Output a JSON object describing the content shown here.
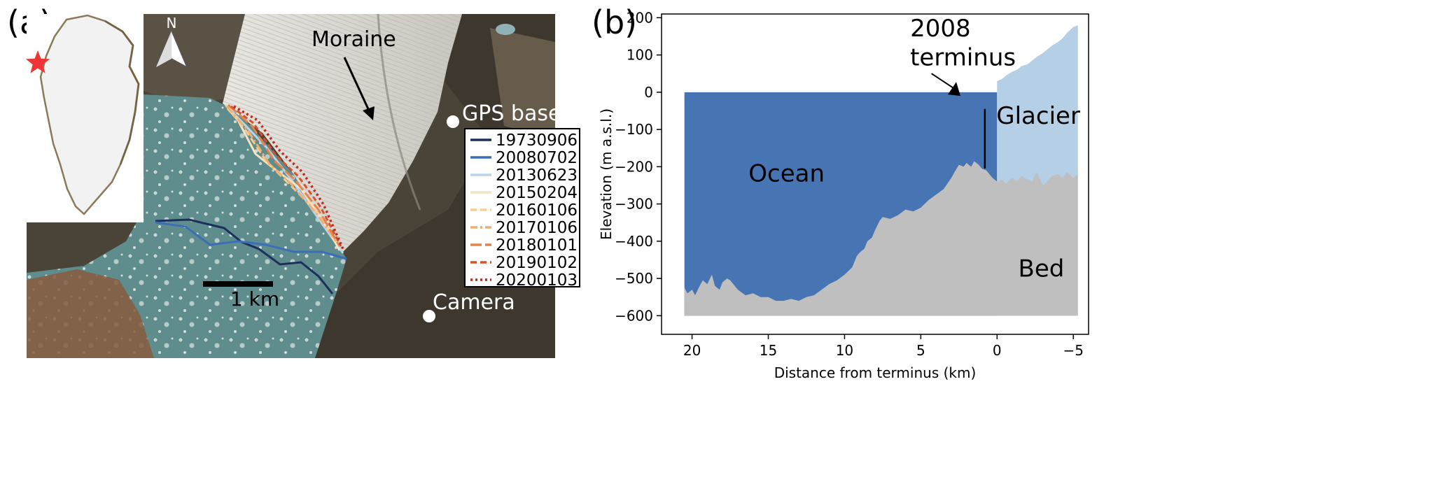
{
  "panel_a": {
    "label": "(a)",
    "north_label": "N",
    "annotations": {
      "moraine": "Moraine",
      "gps_base": "GPS base",
      "camera": "Camera"
    },
    "scale_bar": "1 km",
    "locator_marker": "red-star",
    "legend": [
      {
        "label": "19730906",
        "color": "#1c2f5a",
        "dash": "solid"
      },
      {
        "label": "20080702",
        "color": "#3b6fb5",
        "dash": "solid"
      },
      {
        "label": "20130623",
        "color": "#b9d3ea",
        "dash": "solid"
      },
      {
        "label": "20150204",
        "color": "#f5e3c4",
        "dash": "solid"
      },
      {
        "label": "20160106",
        "color": "#f6ce92",
        "dash": "dashed"
      },
      {
        "label": "20170106",
        "color": "#f0ae72",
        "dash": "dashdot"
      },
      {
        "label": "20180101",
        "color": "#e3834e",
        "dash": "longdash"
      },
      {
        "label": "20190102",
        "color": "#d8532c",
        "dash": "dashed"
      },
      {
        "label": "20200103",
        "color": "#bf2a1c",
        "dash": "dotted"
      }
    ]
  },
  "panel_b": {
    "label": "(b)",
    "chart_data": {
      "type": "area",
      "xlabel": "Distance from terminus (km)",
      "ylabel": "Elevation (m a.s.l.)",
      "xlim": [
        22,
        -6
      ],
      "ylim": [
        -650,
        210
      ],
      "xticks": [
        20,
        15,
        10,
        5,
        0,
        -5
      ],
      "xtick_labels": [
        "20",
        "15",
        "10",
        "5",
        "0",
        "−5"
      ],
      "yticks": [
        200,
        100,
        0,
        -100,
        -200,
        -300,
        -400,
        -500,
        -600
      ],
      "ytick_labels": [
        "200",
        "100",
        "0",
        "−100",
        "−200",
        "−300",
        "−400",
        "−500",
        "−600"
      ],
      "regions": {
        "ocean": "Ocean",
        "glacier": "Glacier",
        "bed": "Bed"
      },
      "annotation": {
        "line1": "2008",
        "line2": "terminus",
        "x": 0.8,
        "y_top": -45,
        "y_bottom": -205
      },
      "colors": {
        "ocean": "#4774b3",
        "glacier": "#b4cfe6",
        "bed": "#bfbfbf"
      },
      "ocean_surface": 0,
      "bed": {
        "x": [
          20.5,
          20.3,
          20.0,
          19.8,
          19.5,
          19.3,
          19.0,
          18.7,
          18.5,
          18.2,
          18.0,
          17.7,
          17.5,
          17.2,
          17.0,
          16.5,
          16.0,
          15.5,
          15.0,
          14.5,
          14.0,
          13.5,
          13.0,
          12.5,
          12.0,
          11.5,
          11.0,
          10.5,
          10.0,
          9.5,
          9.2,
          9.0,
          8.7,
          8.5,
          8.2,
          8.0,
          7.7,
          7.5,
          7.0,
          6.5,
          6.0,
          5.5,
          5.0,
          4.5,
          4.0,
          3.5,
          3.0,
          2.8,
          2.5,
          2.2,
          2.0,
          1.7,
          1.5,
          1.2,
          1.0,
          0.7,
          0.5,
          0.3,
          0.0,
          -0.3,
          -0.6,
          -1.0,
          -1.3,
          -1.6,
          -2.0,
          -2.3,
          -2.6,
          -3.0,
          -3.3,
          -3.6,
          -4.0,
          -4.3,
          -4.6,
          -5.0,
          -5.3
        ],
        "y": [
          -525,
          -540,
          -530,
          -545,
          -520,
          -505,
          -515,
          -490,
          -520,
          -530,
          -510,
          -500,
          -505,
          -520,
          -530,
          -545,
          -540,
          -550,
          -550,
          -560,
          -560,
          -555,
          -560,
          -550,
          -545,
          -530,
          -515,
          -505,
          -490,
          -470,
          -440,
          -430,
          -420,
          -400,
          -390,
          -370,
          -345,
          -335,
          -340,
          -330,
          -315,
          -320,
          -310,
          -290,
          -275,
          -260,
          -230,
          -215,
          -195,
          -200,
          -190,
          -200,
          -185,
          -195,
          -205,
          -210,
          -220,
          -230,
          -240,
          -235,
          -245,
          -230,
          -240,
          -225,
          -235,
          -240,
          -215,
          -250,
          -240,
          -225,
          -220,
          -230,
          -215,
          -230,
          -220
        ]
      },
      "glacier_surface": {
        "x": [
          0.0,
          -0.3,
          -0.6,
          -1.0,
          -1.3,
          -1.6,
          -2.0,
          -2.3,
          -2.6,
          -3.0,
          -3.3,
          -3.6,
          -4.0,
          -4.3,
          -4.6,
          -5.0,
          -5.3
        ],
        "y": [
          30,
          35,
          45,
          55,
          60,
          70,
          75,
          85,
          95,
          105,
          115,
          125,
          135,
          145,
          160,
          175,
          180
        ]
      }
    }
  }
}
